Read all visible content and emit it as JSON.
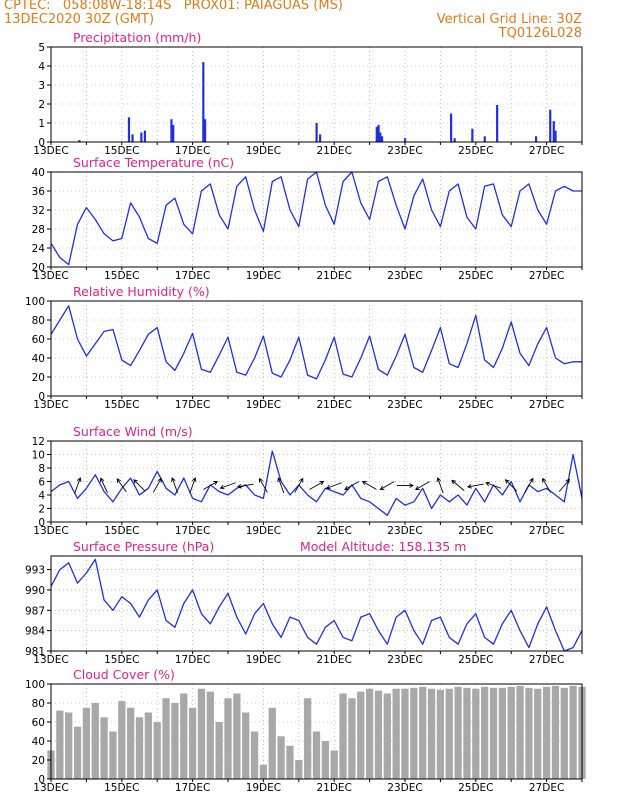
{
  "header": {
    "line1_left": "CPTEC:   058:08W-18:14S   PROX01: PAIAGUAS (MS)",
    "line2_left": "13DEC2020 30Z (GMT)",
    "line2_right": "Vertical Grid Line: 30Z",
    "line3_right": "TQ0126L028"
  },
  "colors": {
    "header": "#e07b1a",
    "panel_title": "#e0208f",
    "series": "#2030e0",
    "cloud": "#a8a8a8",
    "arrow": "#000000",
    "grid": "#999999"
  },
  "chart_data": [
    {
      "type": "bar",
      "title": "Precipitation (mm/h)",
      "ylim": [
        0,
        5
      ],
      "yticks": [
        0,
        1,
        2,
        3,
        4,
        5
      ],
      "xlim_days": [
        0,
        15
      ],
      "xtick_labels": [
        "13DEC",
        "15DEC",
        "17DEC",
        "19DEC",
        "21DEC",
        "23DEC",
        "25DEC",
        "27DEC"
      ],
      "times_days": [
        0.8,
        2.2,
        2.3,
        2.55,
        2.65,
        3.4,
        3.45,
        4.3,
        4.35,
        7.5,
        7.6,
        9.2,
        9.25,
        9.3,
        9.35,
        10.0,
        11.3,
        11.4,
        11.9,
        12.25,
        12.6,
        13.7,
        14.1,
        14.2,
        14.25
      ],
      "values": [
        0.1,
        1.3,
        0.4,
        0.5,
        0.6,
        1.2,
        0.9,
        4.2,
        1.2,
        1.0,
        0.4,
        0.8,
        0.9,
        0.5,
        0.3,
        0.2,
        1.5,
        0.2,
        0.7,
        0.3,
        1.95,
        0.3,
        1.7,
        1.1,
        0.6
      ]
    },
    {
      "type": "line",
      "title": "Surface Temperature (nC)",
      "ylim": [
        20,
        40
      ],
      "yticks": [
        20,
        24,
        28,
        32,
        36,
        40
      ],
      "xlim_days": [
        0,
        15
      ],
      "xtick_labels": [
        "13DEC",
        "15DEC",
        "17DEC",
        "19DEC",
        "21DEC",
        "23DEC",
        "25DEC",
        "27DEC"
      ],
      "x_days": [
        0,
        0.25,
        0.5,
        0.75,
        1.0,
        1.25,
        1.5,
        1.75,
        2.0,
        2.25,
        2.5,
        2.75,
        3.0,
        3.25,
        3.5,
        3.75,
        4.0,
        4.25,
        4.5,
        4.75,
        5.0,
        5.25,
        5.5,
        5.75,
        6.0,
        6.25,
        6.5,
        6.75,
        7.0,
        7.25,
        7.5,
        7.75,
        8.0,
        8.25,
        8.5,
        8.75,
        9.0,
        9.25,
        9.5,
        9.75,
        10.0,
        10.25,
        10.5,
        10.75,
        11.0,
        11.25,
        11.5,
        11.75,
        12.0,
        12.25,
        12.5,
        12.75,
        13.0,
        13.25,
        13.5,
        13.75,
        14.0,
        14.25,
        14.5,
        14.75,
        15.0
      ],
      "values": [
        25,
        22,
        20.5,
        29,
        32.5,
        30,
        27,
        25.5,
        26,
        33.5,
        30.5,
        26,
        25,
        33,
        34.5,
        29,
        27,
        36,
        37.5,
        31,
        28,
        37,
        39,
        32,
        27.5,
        38,
        39,
        32,
        28.5,
        38.5,
        40,
        33,
        29,
        38,
        40,
        33.5,
        30,
        38,
        39,
        33,
        28,
        35,
        38.5,
        32,
        28.5,
        36,
        37.5,
        30.5,
        28,
        37,
        37.5,
        31,
        28.5,
        36,
        37.5,
        32,
        29,
        36,
        37,
        36,
        36
      ]
    },
    {
      "type": "line",
      "title": "Relative Humidity (%)",
      "ylim": [
        0,
        100
      ],
      "yticks": [
        0,
        20,
        40,
        60,
        80,
        100
      ],
      "xlim_days": [
        0,
        15
      ],
      "xtick_labels": [
        "13DEC",
        "15DEC",
        "17DEC",
        "19DEC",
        "21DEC",
        "23DEC",
        "25DEC",
        "27DEC"
      ],
      "x_days": [
        0,
        0.25,
        0.5,
        0.75,
        1.0,
        1.25,
        1.5,
        1.75,
        2.0,
        2.25,
        2.5,
        2.75,
        3.0,
        3.25,
        3.5,
        3.75,
        4.0,
        4.25,
        4.5,
        4.75,
        5.0,
        5.25,
        5.5,
        5.75,
        6.0,
        6.25,
        6.5,
        6.75,
        7.0,
        7.25,
        7.5,
        7.75,
        8.0,
        8.25,
        8.5,
        8.75,
        9.0,
        9.25,
        9.5,
        9.75,
        10.0,
        10.25,
        10.5,
        10.75,
        11.0,
        11.25,
        11.5,
        11.75,
        12.0,
        12.25,
        12.5,
        12.75,
        13.0,
        13.25,
        13.5,
        13.75,
        14.0,
        14.25,
        14.5,
        14.75,
        15.0
      ],
      "values": [
        65,
        80,
        95,
        60,
        42,
        55,
        68,
        70,
        38,
        32,
        48,
        65,
        72,
        36,
        27,
        45,
        66,
        28,
        25,
        43,
        62,
        25,
        22,
        40,
        63,
        24,
        20,
        38,
        62,
        22,
        18,
        38,
        62,
        23,
        20,
        40,
        63,
        28,
        22,
        42,
        65,
        30,
        25,
        48,
        72,
        34,
        30,
        55,
        85,
        38,
        30,
        50,
        78,
        45,
        32,
        55,
        72,
        40,
        34,
        36,
        36
      ]
    },
    {
      "type": "line",
      "title": "Surface Wind (m/s)",
      "ylim": [
        0,
        12
      ],
      "yticks": [
        0,
        2,
        4,
        6,
        8,
        10,
        12
      ],
      "xlim_days": [
        0,
        15
      ],
      "xtick_labels": [
        "13DEC",
        "15DEC",
        "17DEC",
        "19DEC",
        "21DEC",
        "23DEC",
        "25DEC",
        "27DEC"
      ],
      "x_days": [
        0,
        0.25,
        0.5,
        0.75,
        1.0,
        1.25,
        1.5,
        1.75,
        2.0,
        2.25,
        2.5,
        2.75,
        3.0,
        3.25,
        3.5,
        3.75,
        4.0,
        4.25,
        4.5,
        4.75,
        5.0,
        5.25,
        5.5,
        5.75,
        6.0,
        6.25,
        6.5,
        6.75,
        7.0,
        7.25,
        7.5,
        7.75,
        8.0,
        8.25,
        8.5,
        8.75,
        9.0,
        9.25,
        9.5,
        9.75,
        10.0,
        10.25,
        10.5,
        10.75,
        11.0,
        11.25,
        11.5,
        11.75,
        12.0,
        12.25,
        12.5,
        12.75,
        13.0,
        13.25,
        13.5,
        13.75,
        14.0,
        14.25,
        14.5,
        14.75,
        15.0
      ],
      "values": [
        4.5,
        5.5,
        6,
        3.5,
        5,
        7,
        4.5,
        3,
        5,
        6.5,
        4,
        5,
        7.5,
        5,
        4,
        6.5,
        3.5,
        3,
        5.5,
        4.5,
        4,
        5,
        5.5,
        4,
        3.5,
        10.5,
        6,
        4,
        5.5,
        4,
        3,
        5,
        4.5,
        4,
        5.5,
        3.5,
        3,
        2,
        1,
        3.5,
        2.5,
        3,
        5,
        2,
        4,
        3,
        4,
        2.5,
        5,
        3,
        5.5,
        4,
        6,
        3,
        5.5,
        4.5,
        5,
        4,
        3,
        10,
        3.5
      ],
      "arrow_times_days": [
        0.75,
        1.5,
        2.0,
        2.5,
        3.0,
        3.5,
        4.0,
        4.5,
        5.0,
        5.5,
        6.0,
        6.5,
        7.0,
        7.5,
        8.0,
        8.5,
        9.0,
        9.5,
        10.0,
        10.5,
        11.0,
        11.5,
        12.0,
        12.5,
        13.0,
        13.5,
        14.0,
        14.5
      ],
      "arrow_bearings_deg": [
        160,
        205,
        215,
        225,
        150,
        200,
        160,
        120,
        290,
        280,
        210,
        200,
        150,
        120,
        290,
        300,
        240,
        300,
        90,
        300,
        200,
        230,
        280,
        250,
        225,
        150,
        210,
        140
      ]
    },
    {
      "type": "line",
      "title": "Surface Pressure (hPa)",
      "annotation": "Model Altitude: 158.135 m",
      "ylim": [
        981,
        995
      ],
      "yticks": [
        981,
        984,
        987,
        990,
        993
      ],
      "xlim_days": [
        0,
        15
      ],
      "xtick_labels": [
        "13DEC",
        "15DEC",
        "17DEC",
        "19DEC",
        "21DEC",
        "23DEC",
        "25DEC",
        "27DEC"
      ],
      "x_days": [
        0,
        0.25,
        0.5,
        0.75,
        1.0,
        1.25,
        1.5,
        1.75,
        2.0,
        2.25,
        2.5,
        2.75,
        3.0,
        3.25,
        3.5,
        3.75,
        4.0,
        4.25,
        4.5,
        4.75,
        5.0,
        5.25,
        5.5,
        5.75,
        6.0,
        6.25,
        6.5,
        6.75,
        7.0,
        7.25,
        7.5,
        7.75,
        8.0,
        8.25,
        8.5,
        8.75,
        9.0,
        9.25,
        9.5,
        9.75,
        10.0,
        10.25,
        10.5,
        10.75,
        11.0,
        11.25,
        11.5,
        11.75,
        12.0,
        12.25,
        12.5,
        12.75,
        13.0,
        13.25,
        13.5,
        13.75,
        14.0,
        14.25,
        14.5,
        14.75,
        15.0
      ],
      "values": [
        990.5,
        993,
        994,
        991,
        992.5,
        994.5,
        988.5,
        987,
        989,
        988,
        986,
        988.5,
        990,
        985.5,
        984.5,
        988,
        990,
        986.5,
        985,
        987.5,
        989.5,
        986,
        983.5,
        986.5,
        988,
        985,
        983,
        986,
        985.5,
        983,
        982,
        984.5,
        985.5,
        983,
        982.5,
        986,
        986.5,
        984,
        982,
        986,
        987,
        984,
        982,
        985.5,
        986,
        983,
        982,
        985,
        986.5,
        983,
        982,
        985,
        987,
        984,
        981.5,
        985,
        987.5,
        984,
        981,
        981.5,
        984
      ]
    },
    {
      "type": "area",
      "title": "Cloud Cover (%)",
      "ylim": [
        0,
        100
      ],
      "yticks": [
        0,
        20,
        40,
        60,
        80,
        100
      ],
      "xlim_days": [
        0,
        15
      ],
      "xtick_labels": [
        "13DEC",
        "15DEC",
        "17DEC",
        "19DEC",
        "21DEC",
        "23DEC",
        "25DEC",
        "27DEC"
      ],
      "x_days": [
        0,
        0.25,
        0.5,
        0.75,
        1.0,
        1.25,
        1.5,
        1.75,
        2.0,
        2.25,
        2.5,
        2.75,
        3.0,
        3.25,
        3.5,
        3.75,
        4.0,
        4.25,
        4.5,
        4.75,
        5.0,
        5.25,
        5.5,
        5.75,
        6.0,
        6.25,
        6.5,
        6.75,
        7.0,
        7.25,
        7.5,
        7.75,
        8.0,
        8.25,
        8.5,
        8.75,
        9.0,
        9.25,
        9.5,
        9.75,
        10.0,
        10.25,
        10.5,
        10.75,
        11.0,
        11.25,
        11.5,
        11.75,
        12.0,
        12.25,
        12.5,
        12.75,
        13.0,
        13.25,
        13.5,
        13.75,
        14.0,
        14.25,
        14.5,
        14.75,
        15.0
      ],
      "values": [
        30,
        72,
        70,
        55,
        75,
        80,
        65,
        50,
        82,
        75,
        65,
        70,
        60,
        85,
        80,
        90,
        75,
        95,
        92,
        60,
        85,
        90,
        70,
        50,
        15,
        75,
        45,
        35,
        20,
        85,
        50,
        40,
        30,
        90,
        85,
        92,
        95,
        93,
        90,
        95,
        95,
        96,
        97,
        95,
        94,
        95,
        97,
        96,
        95,
        97,
        96,
        96,
        97,
        98,
        96,
        95,
        97,
        98,
        96,
        98,
        97
      ]
    }
  ]
}
